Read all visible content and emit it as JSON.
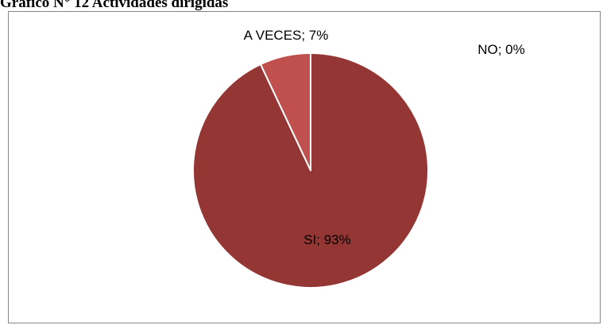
{
  "caption": "Gráfico N° 12 Actividades dirigidas",
  "chart_data": {
    "type": "pie",
    "title": "",
    "slices": [
      {
        "label": "SI",
        "value": 93,
        "display": "SI; 93%",
        "color": "#943634"
      },
      {
        "label": "A VECES",
        "value": 7,
        "display": "A VECES; 7%",
        "color": "#c0504d"
      },
      {
        "label": "NO",
        "value": 0,
        "display": "NO; 0%",
        "color": "#9bbb59"
      }
    ],
    "legend": "none",
    "start_angle_deg": 0,
    "direction": "clockwise"
  }
}
